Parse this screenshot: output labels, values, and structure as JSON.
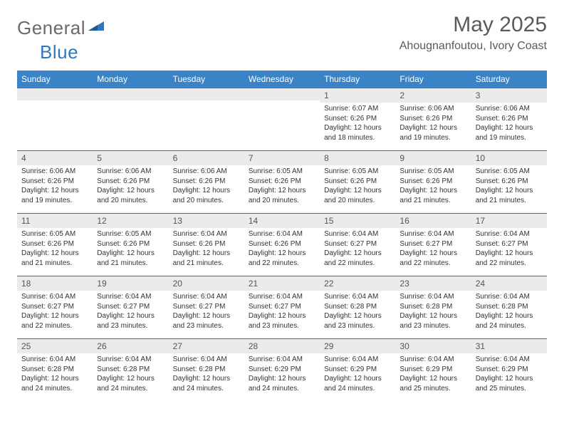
{
  "logo": {
    "general": "General",
    "blue": "Blue"
  },
  "title": "May 2025",
  "location": "Ahougnanfoutou, Ivory Coast",
  "colors": {
    "header_bg": "#3b83c7",
    "band_bg": "#ebebeb",
    "band_border": "#2f78bd",
    "title_color": "#5a5a5a",
    "text_color": "#333333"
  },
  "weekdays": [
    "Sunday",
    "Monday",
    "Tuesday",
    "Wednesday",
    "Thursday",
    "Friday",
    "Saturday"
  ],
  "weeks": [
    [
      {
        "n": "",
        "sr": "",
        "ss": "",
        "dl": ""
      },
      {
        "n": "",
        "sr": "",
        "ss": "",
        "dl": ""
      },
      {
        "n": "",
        "sr": "",
        "ss": "",
        "dl": ""
      },
      {
        "n": "",
        "sr": "",
        "ss": "",
        "dl": ""
      },
      {
        "n": "1",
        "sr": "Sunrise: 6:07 AM",
        "ss": "Sunset: 6:26 PM",
        "dl": "Daylight: 12 hours and 18 minutes."
      },
      {
        "n": "2",
        "sr": "Sunrise: 6:06 AM",
        "ss": "Sunset: 6:26 PM",
        "dl": "Daylight: 12 hours and 19 minutes."
      },
      {
        "n": "3",
        "sr": "Sunrise: 6:06 AM",
        "ss": "Sunset: 6:26 PM",
        "dl": "Daylight: 12 hours and 19 minutes."
      }
    ],
    [
      {
        "n": "4",
        "sr": "Sunrise: 6:06 AM",
        "ss": "Sunset: 6:26 PM",
        "dl": "Daylight: 12 hours and 19 minutes."
      },
      {
        "n": "5",
        "sr": "Sunrise: 6:06 AM",
        "ss": "Sunset: 6:26 PM",
        "dl": "Daylight: 12 hours and 20 minutes."
      },
      {
        "n": "6",
        "sr": "Sunrise: 6:06 AM",
        "ss": "Sunset: 6:26 PM",
        "dl": "Daylight: 12 hours and 20 minutes."
      },
      {
        "n": "7",
        "sr": "Sunrise: 6:05 AM",
        "ss": "Sunset: 6:26 PM",
        "dl": "Daylight: 12 hours and 20 minutes."
      },
      {
        "n": "8",
        "sr": "Sunrise: 6:05 AM",
        "ss": "Sunset: 6:26 PM",
        "dl": "Daylight: 12 hours and 20 minutes."
      },
      {
        "n": "9",
        "sr": "Sunrise: 6:05 AM",
        "ss": "Sunset: 6:26 PM",
        "dl": "Daylight: 12 hours and 21 minutes."
      },
      {
        "n": "10",
        "sr": "Sunrise: 6:05 AM",
        "ss": "Sunset: 6:26 PM",
        "dl": "Daylight: 12 hours and 21 minutes."
      }
    ],
    [
      {
        "n": "11",
        "sr": "Sunrise: 6:05 AM",
        "ss": "Sunset: 6:26 PM",
        "dl": "Daylight: 12 hours and 21 minutes."
      },
      {
        "n": "12",
        "sr": "Sunrise: 6:05 AM",
        "ss": "Sunset: 6:26 PM",
        "dl": "Daylight: 12 hours and 21 minutes."
      },
      {
        "n": "13",
        "sr": "Sunrise: 6:04 AM",
        "ss": "Sunset: 6:26 PM",
        "dl": "Daylight: 12 hours and 21 minutes."
      },
      {
        "n": "14",
        "sr": "Sunrise: 6:04 AM",
        "ss": "Sunset: 6:26 PM",
        "dl": "Daylight: 12 hours and 22 minutes."
      },
      {
        "n": "15",
        "sr": "Sunrise: 6:04 AM",
        "ss": "Sunset: 6:27 PM",
        "dl": "Daylight: 12 hours and 22 minutes."
      },
      {
        "n": "16",
        "sr": "Sunrise: 6:04 AM",
        "ss": "Sunset: 6:27 PM",
        "dl": "Daylight: 12 hours and 22 minutes."
      },
      {
        "n": "17",
        "sr": "Sunrise: 6:04 AM",
        "ss": "Sunset: 6:27 PM",
        "dl": "Daylight: 12 hours and 22 minutes."
      }
    ],
    [
      {
        "n": "18",
        "sr": "Sunrise: 6:04 AM",
        "ss": "Sunset: 6:27 PM",
        "dl": "Daylight: 12 hours and 22 minutes."
      },
      {
        "n": "19",
        "sr": "Sunrise: 6:04 AM",
        "ss": "Sunset: 6:27 PM",
        "dl": "Daylight: 12 hours and 23 minutes."
      },
      {
        "n": "20",
        "sr": "Sunrise: 6:04 AM",
        "ss": "Sunset: 6:27 PM",
        "dl": "Daylight: 12 hours and 23 minutes."
      },
      {
        "n": "21",
        "sr": "Sunrise: 6:04 AM",
        "ss": "Sunset: 6:27 PM",
        "dl": "Daylight: 12 hours and 23 minutes."
      },
      {
        "n": "22",
        "sr": "Sunrise: 6:04 AM",
        "ss": "Sunset: 6:28 PM",
        "dl": "Daylight: 12 hours and 23 minutes."
      },
      {
        "n": "23",
        "sr": "Sunrise: 6:04 AM",
        "ss": "Sunset: 6:28 PM",
        "dl": "Daylight: 12 hours and 23 minutes."
      },
      {
        "n": "24",
        "sr": "Sunrise: 6:04 AM",
        "ss": "Sunset: 6:28 PM",
        "dl": "Daylight: 12 hours and 24 minutes."
      }
    ],
    [
      {
        "n": "25",
        "sr": "Sunrise: 6:04 AM",
        "ss": "Sunset: 6:28 PM",
        "dl": "Daylight: 12 hours and 24 minutes."
      },
      {
        "n": "26",
        "sr": "Sunrise: 6:04 AM",
        "ss": "Sunset: 6:28 PM",
        "dl": "Daylight: 12 hours and 24 minutes."
      },
      {
        "n": "27",
        "sr": "Sunrise: 6:04 AM",
        "ss": "Sunset: 6:28 PM",
        "dl": "Daylight: 12 hours and 24 minutes."
      },
      {
        "n": "28",
        "sr": "Sunrise: 6:04 AM",
        "ss": "Sunset: 6:29 PM",
        "dl": "Daylight: 12 hours and 24 minutes."
      },
      {
        "n": "29",
        "sr": "Sunrise: 6:04 AM",
        "ss": "Sunset: 6:29 PM",
        "dl": "Daylight: 12 hours and 24 minutes."
      },
      {
        "n": "30",
        "sr": "Sunrise: 6:04 AM",
        "ss": "Sunset: 6:29 PM",
        "dl": "Daylight: 12 hours and 25 minutes."
      },
      {
        "n": "31",
        "sr": "Sunrise: 6:04 AM",
        "ss": "Sunset: 6:29 PM",
        "dl": "Daylight: 12 hours and 25 minutes."
      }
    ]
  ]
}
